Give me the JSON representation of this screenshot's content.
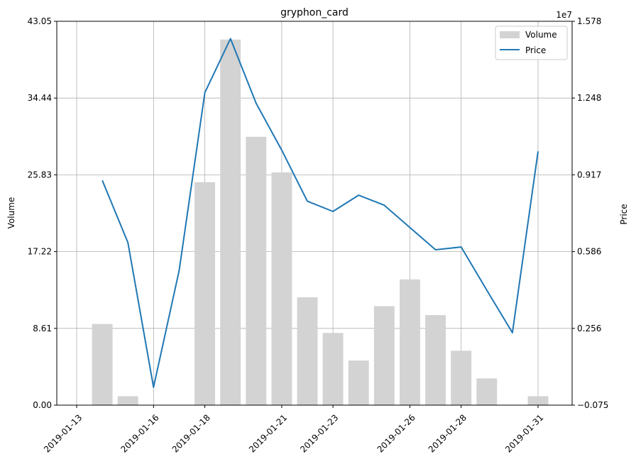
{
  "chart_data": {
    "type": "bar+line",
    "title": "gryphon_card",
    "xlabel": "",
    "ylabel_left": "Volume",
    "ylabel_right": "Price",
    "right_axis_multiplier": "1e7",
    "grid": true,
    "legend_position": "top-right",
    "legend": [
      "Volume",
      "Price"
    ],
    "x_start": "2019-01-13",
    "x_end": "2019-01-31",
    "xticks": [
      "2019-01-13",
      "2019-01-16",
      "2019-01-18",
      "2019-01-21",
      "2019-01-23",
      "2019-01-26",
      "2019-01-28",
      "2019-01-31"
    ],
    "ylim_left": [
      0,
      43.05
    ],
    "yticks_left": [
      "0.00",
      "8.61",
      "17.22",
      "25.83",
      "34.44",
      "43.05"
    ],
    "ylim_right": [
      -0.075,
      1.578
    ],
    "yticks_right": [
      "−0.075",
      "0.256",
      "0.586",
      "0.917",
      "1.248",
      "1.578"
    ],
    "series": [
      {
        "name": "Volume",
        "kind": "bar",
        "color": "#d3d3d3",
        "x": [
          "2019-01-14",
          "2019-01-15",
          "2019-01-18",
          "2019-01-19",
          "2019-01-20",
          "2019-01-21",
          "2019-01-22",
          "2019-01-23",
          "2019-01-24",
          "2019-01-25",
          "2019-01-26",
          "2019-01-27",
          "2019-01-28",
          "2019-01-29",
          "2019-01-31"
        ],
        "values": [
          9.1,
          1.0,
          25.0,
          41.0,
          30.1,
          26.1,
          12.1,
          8.1,
          5.0,
          11.1,
          14.1,
          10.1,
          6.1,
          3.0,
          1.0
        ]
      },
      {
        "name": "Price",
        "kind": "line",
        "color": "#1f77b4",
        "x": [
          "2019-01-14",
          "2019-01-15",
          "2019-01-16",
          "2019-01-17",
          "2019-01-18",
          "2019-01-19",
          "2019-01-20",
          "2019-01-21",
          "2019-01-22",
          "2019-01-23",
          "2019-01-24",
          "2019-01-25",
          "2019-01-26",
          "2019-01-27",
          "2019-01-28",
          "2019-01-29",
          "2019-01-30",
          "2019-01-31"
        ],
        "values": [
          0.893,
          0.625,
          0.002,
          0.505,
          1.271,
          1.503,
          1.225,
          1.023,
          0.803,
          0.759,
          0.829,
          0.786,
          0.69,
          0.594,
          0.606,
          0.42,
          0.237,
          1.018
        ]
      }
    ]
  }
}
